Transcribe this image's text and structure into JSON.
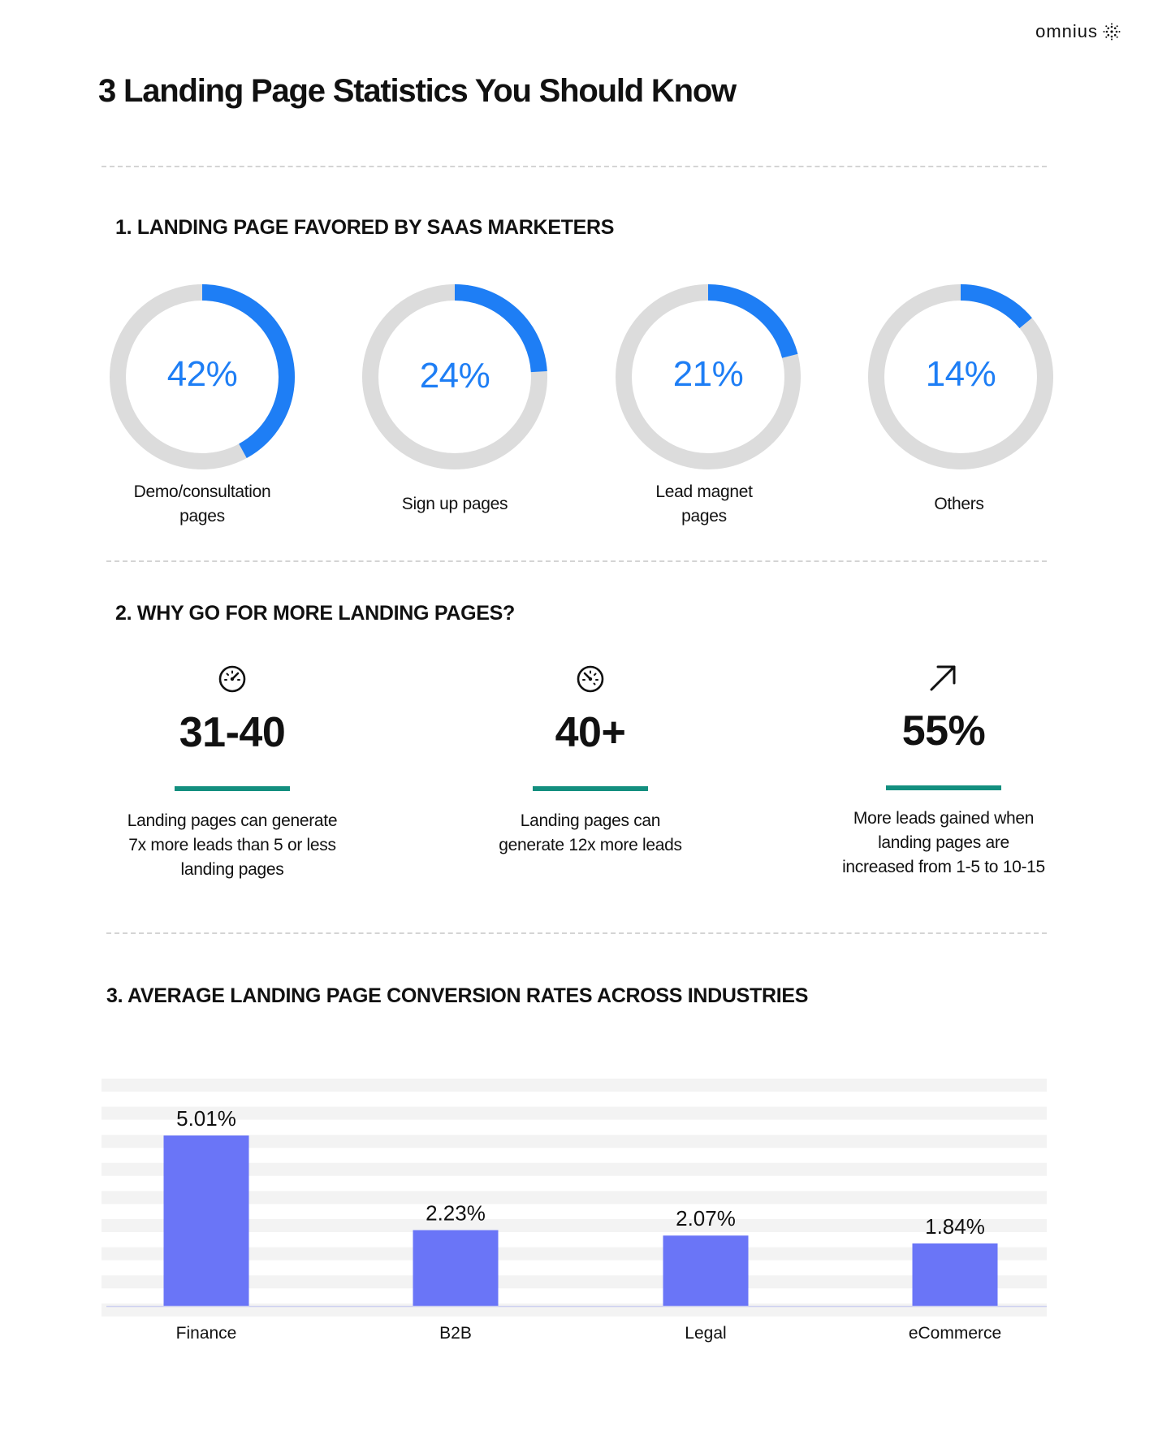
{
  "brand": {
    "name": "omnius",
    "icon": "sunburst-logo-icon"
  },
  "title": "3 Landing Page Statistics You Should Know",
  "section1": {
    "heading": "1. LANDING PAGE FAVORED BY SAAS MARKETERS",
    "donuts": [
      {
        "percent": "42%",
        "value": 42,
        "label_line1": "Demo/consultation",
        "label_line2": "pages"
      },
      {
        "percent": "24%",
        "value": 24,
        "label_line1": "Sign up pages",
        "label_line2": ""
      },
      {
        "percent": "21%",
        "value": 21,
        "label_line1": "Lead magnet",
        "label_line2": "pages"
      },
      {
        "percent": "14%",
        "value": 14,
        "label_line1": "Others",
        "label_line2": ""
      }
    ],
    "colors": {
      "filled": "#1e7ef5",
      "track": "#dcdcdc"
    }
  },
  "section2": {
    "heading": "2. WHY GO FOR MORE LANDING PAGES?",
    "stats": [
      {
        "icon": "speedometer-icon",
        "value": "31-40",
        "desc_line1": "Landing pages can generate",
        "desc_line2": "7x more leads than 5 or less",
        "desc_line3": "landing pages"
      },
      {
        "icon": "gauge-icon",
        "value": "40+",
        "desc_line1": "Landing pages can",
        "desc_line2": "generate 12x more leads",
        "desc_line3": ""
      },
      {
        "icon": "arrow-up-right-icon",
        "value": "55%",
        "desc_line1": "More leads gained when",
        "desc_line2": "landing pages are",
        "desc_line3": "increased from 1-5 to 10-15"
      }
    ],
    "accent_color": "#138f7f"
  },
  "section3": {
    "heading": "3. AVERAGE LANDING PAGE CONVERSION RATES ACROSS INDUSTRIES"
  },
  "chart_data": {
    "type": "bar",
    "categories": [
      "Finance",
      "B2B",
      "Legal",
      "eCommerce"
    ],
    "values": [
      5.01,
      2.23,
      2.07,
      1.84
    ],
    "value_labels": [
      "5.01%",
      "2.23%",
      "2.07%",
      "1.84%"
    ],
    "title": "",
    "xlabel": "",
    "ylabel": "",
    "bar_color": "#6a75f7",
    "ylim": [
      0,
      5.01
    ],
    "grid": true
  }
}
